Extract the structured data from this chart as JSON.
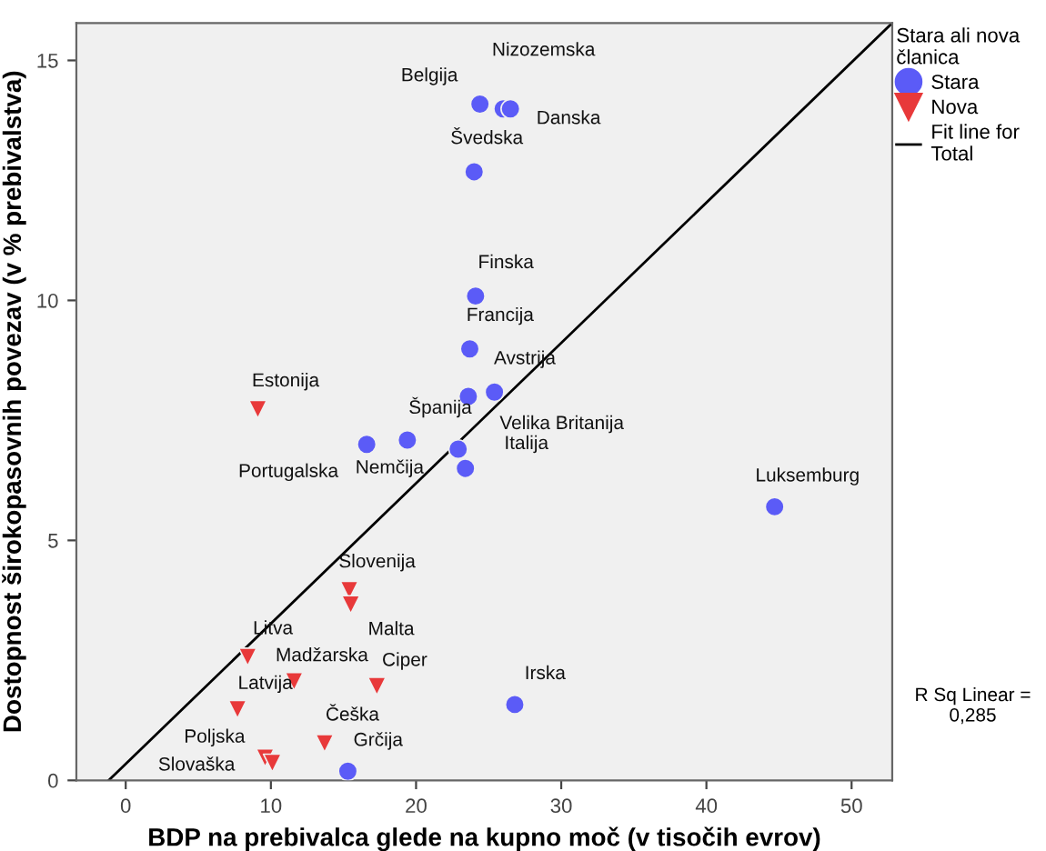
{
  "chart_data": {
    "type": "scatter",
    "xlabel": "BDP na prebivalca glede na kupno moč (v tisočih evrov)",
    "ylabel": "Dostopnost širokopasovnih povezav (v % prebivalstva)",
    "legend_title": "Stara ali nova članica",
    "xlim": [
      -3.4,
      52.8
    ],
    "ylim": [
      0,
      15.78
    ],
    "xticks": [
      0,
      10,
      20,
      30,
      40,
      50
    ],
    "yticks": [
      0,
      5,
      10,
      15
    ],
    "grid": false,
    "legend": "top right",
    "series": [
      {
        "name": "Stara",
        "color": "#5b5bf7",
        "marker": "circle",
        "x": [
          24.4,
          26.0,
          26.5,
          24.0,
          24.1,
          23.7,
          25.4,
          23.6,
          19.4,
          16.6,
          22.9,
          23.4,
          44.7,
          26.8,
          15.3
        ],
        "values": [
          14.09,
          13.99,
          13.99,
          12.68,
          10.09,
          8.99,
          8.09,
          8.0,
          7.09,
          7.0,
          6.9,
          6.5,
          5.7,
          1.58,
          0.19
        ]
      },
      {
        "name": "Nova",
        "color": "#e8393a",
        "marker": "triangle",
        "x": [
          9.1,
          15.4,
          15.5,
          8.4,
          11.6,
          17.3,
          7.7,
          13.7,
          9.6,
          10.1
        ],
        "values": [
          7.73,
          3.96,
          3.66,
          2.57,
          2.06,
          1.96,
          1.48,
          0.77,
          0.47,
          0.36
        ]
      },
      {
        "name": "Fit line for Total",
        "type": "line",
        "color": "#000000",
        "x": [
          -1.17,
          52.8
        ],
        "values": [
          0,
          15.78
        ]
      }
    ],
    "annotations": [
      {
        "text": "Belgija",
        "x": 24.4,
        "y": 14.09
      },
      {
        "text": "Nizozemska",
        "x": 26.0,
        "y": 13.99
      },
      {
        "text": "Danska",
        "x": 26.5,
        "y": 13.99
      },
      {
        "text": "Švedska",
        "x": 24.0,
        "y": 12.68
      },
      {
        "text": "Finska",
        "x": 24.1,
        "y": 10.09
      },
      {
        "text": "Francija",
        "x": 23.7,
        "y": 8.99
      },
      {
        "text": "Avstrija",
        "x": 25.4,
        "y": 8.09
      },
      {
        "text": "Velika Britanija",
        "x": 23.6,
        "y": 8.0
      },
      {
        "text": "Španija",
        "x": 19.4,
        "y": 7.09
      },
      {
        "text": "Portugalska",
        "x": 16.6,
        "y": 7.0
      },
      {
        "text": "Italija",
        "x": 22.9,
        "y": 6.9
      },
      {
        "text": "Nemčija",
        "x": 23.4,
        "y": 6.5
      },
      {
        "text": "Luksemburg",
        "x": 44.7,
        "y": 5.7
      },
      {
        "text": "Irska",
        "x": 26.8,
        "y": 1.58
      },
      {
        "text": "Grčija",
        "x": 15.3,
        "y": 0.19
      },
      {
        "text": "Estonija",
        "x": 9.1,
        "y": 7.73
      },
      {
        "text": "Slovenija",
        "x": 15.4,
        "y": 3.96
      },
      {
        "text": "Malta",
        "x": 15.5,
        "y": 3.66
      },
      {
        "text": "Litva",
        "x": 8.4,
        "y": 2.57
      },
      {
        "text": "Madžarska",
        "x": 11.6,
        "y": 2.06
      },
      {
        "text": "Ciper",
        "x": 17.3,
        "y": 1.96
      },
      {
        "text": "Latvija",
        "x": 7.7,
        "y": 1.48
      },
      {
        "text": "Češka",
        "x": 13.7,
        "y": 0.77
      },
      {
        "text": "Poljska",
        "x": 9.6,
        "y": 0.47
      },
      {
        "text": "Slovaška",
        "x": 10.1,
        "y": 0.36
      },
      "R Sq Linear = 0,285"
    ]
  }
}
